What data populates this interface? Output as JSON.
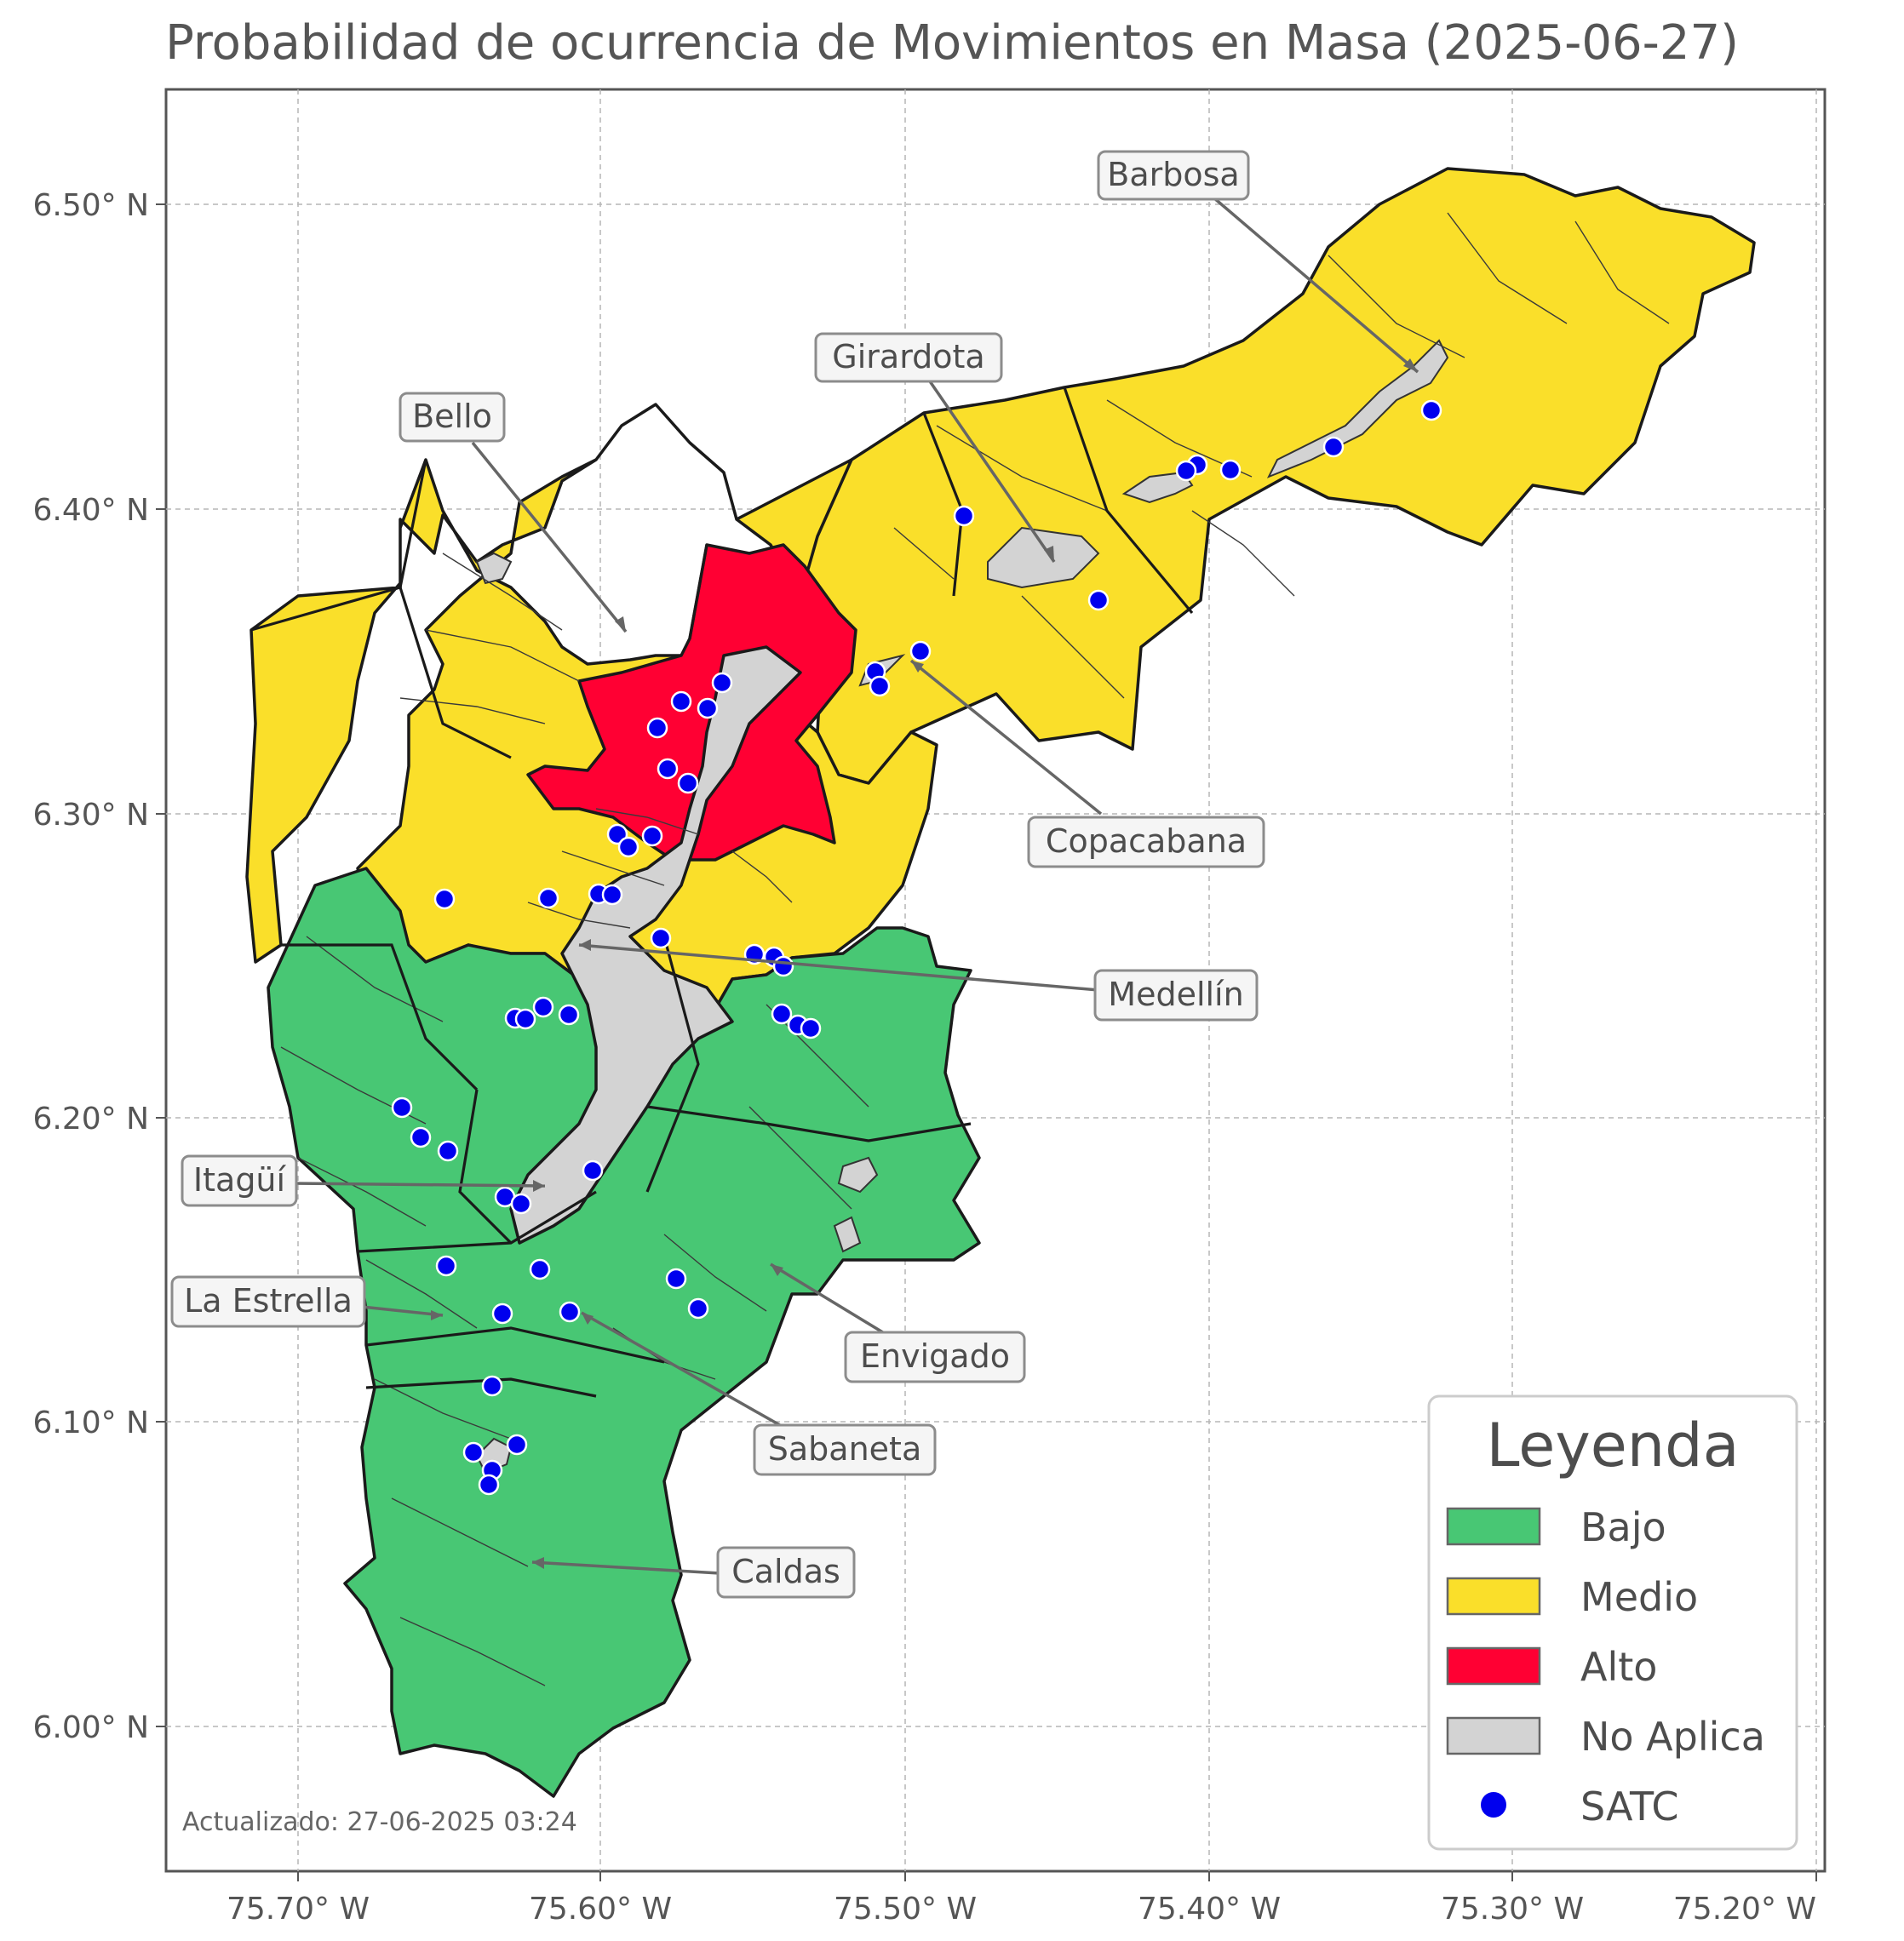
{
  "title": "Probabilidad de ocurrencia de Movimientos en Masa (2025-06-27)",
  "footer": "Actualizado: 27-06-2025 03:24",
  "x_ticks": [
    "75.70° W",
    "75.60° W",
    "75.50° W",
    "75.40° W",
    "75.30° W",
    "75.20° W"
  ],
  "y_ticks": [
    "6.50° N",
    "6.40° N",
    "6.30° N",
    "6.20° N",
    "6.10° N",
    "6.00° N"
  ],
  "legend": {
    "title": "Leyenda",
    "items": [
      {
        "label": "Bajo",
        "color": "#48c774"
      },
      {
        "label": "Medio",
        "color": "#fadf2a"
      },
      {
        "label": "Alto",
        "color": "#ff0033"
      },
      {
        "label": "No Aplica",
        "color": "#d3d3d3"
      },
      {
        "label": "SATC",
        "color": "#0000ee"
      }
    ]
  },
  "municipalities": {
    "barbosa": "Barbosa",
    "girardota": "Girardota",
    "bello": "Bello",
    "copacabana": "Copacabana",
    "medellin": "Medellín",
    "itagui": "Itagüí",
    "la_estrella": "La Estrella",
    "envigado": "Envigado",
    "sabaneta": "Sabaneta",
    "caldas": "Caldas"
  },
  "risk_colors": {
    "bajo": "#48c774",
    "medio": "#fadf2a",
    "alto": "#ff0033",
    "no_aplica": "#d3d3d3",
    "satc": "#0000ee"
  }
}
